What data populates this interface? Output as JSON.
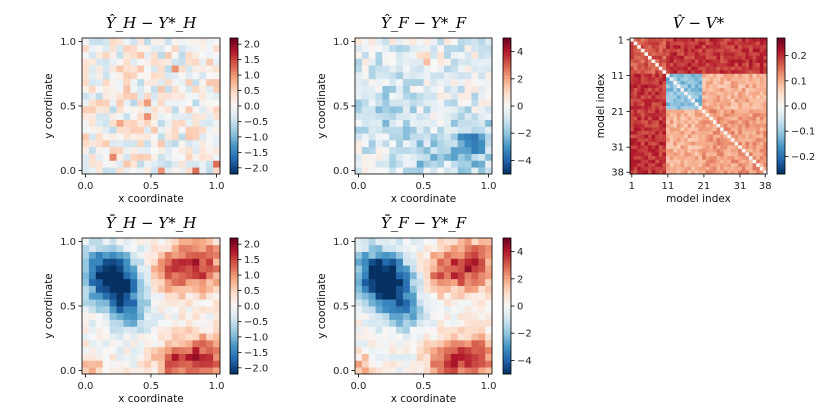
{
  "chart_data": [
    {
      "type": "heatmap",
      "title": "Ŷ_H − Y*_H",
      "xlabel": "x coordinate",
      "ylabel": "y coordinate",
      "xlim": [
        0,
        1
      ],
      "ylim": [
        0,
        1
      ],
      "x_ticks": [
        "0.0",
        "0.5",
        "1.0"
      ],
      "y_ticks": [
        "0.0",
        "0.5",
        "1.0"
      ],
      "grid_size": [
        20,
        20
      ],
      "pattern": "small-noise",
      "colormap": "RdBu_r",
      "colorbar": {
        "min": -2.2,
        "max": 2.2,
        "ticks": [
          "2.0",
          "1.5",
          "1.0",
          "0.5",
          "0.0",
          "−0.5",
          "−1.0",
          "−1.5",
          "−2.0"
        ],
        "tick_values": [
          2.0,
          1.5,
          1.0,
          0.5,
          0.0,
          -0.5,
          -1.0,
          -1.5,
          -2.0
        ]
      }
    },
    {
      "type": "heatmap",
      "title": "Ŷ_F − Y*_F",
      "xlabel": "x coordinate",
      "ylabel": "y coordinate",
      "xlim": [
        0,
        1
      ],
      "ylim": [
        0,
        1
      ],
      "x_ticks": [
        "0.0",
        "0.5",
        "1.0"
      ],
      "y_ticks": [
        "0.0",
        "0.5",
        "1.0"
      ],
      "grid_size": [
        20,
        20
      ],
      "pattern": "mostly-negative-noise",
      "colormap": "RdBu_r",
      "colorbar": {
        "min": -5,
        "max": 5,
        "ticks": [
          "4",
          "2",
          "0",
          "−2",
          "−4"
        ],
        "tick_values": [
          4,
          2,
          0,
          -2,
          -4
        ]
      }
    },
    {
      "type": "heatmap",
      "title": "V̂ − V*",
      "xlabel": "model index",
      "ylabel": "model index",
      "x_ticks": [
        "1",
        "11",
        "21",
        "31",
        "38"
      ],
      "y_ticks": [
        "1",
        "11",
        "21",
        "31",
        "38"
      ],
      "tick_values": [
        1,
        11,
        21,
        31,
        38
      ],
      "grid_size": [
        38,
        38
      ],
      "pattern": "covariance-blocks",
      "blocks": [
        [
          1,
          10
        ],
        [
          11,
          20
        ],
        [
          21,
          38
        ]
      ],
      "colormap": "RdBu_r",
      "colorbar": {
        "min": -0.27,
        "max": 0.27,
        "ticks": [
          "0.2",
          "0.1",
          "0.0",
          "−0.1",
          "−0.2"
        ],
        "tick_values": [
          0.2,
          0.1,
          0.0,
          -0.1,
          -0.2
        ]
      }
    },
    {
      "type": "heatmap",
      "title": "Ȳ_H − Y*_H",
      "xlabel": "x coordinate",
      "ylabel": "y coordinate",
      "xlim": [
        0,
        1
      ],
      "ylim": [
        0,
        1
      ],
      "x_ticks": [
        "0.0",
        "0.5",
        "1.0"
      ],
      "y_ticks": [
        "0.0",
        "0.5",
        "1.0"
      ],
      "grid_size": [
        20,
        20
      ],
      "pattern": "smooth-field",
      "colormap": "RdBu_r",
      "colorbar": {
        "min": -2.2,
        "max": 2.2,
        "ticks": [
          "2.0",
          "1.5",
          "1.0",
          "0.5",
          "0.0",
          "−0.5",
          "−1.0",
          "−1.5",
          "−2.0"
        ],
        "tick_values": [
          2.0,
          1.5,
          1.0,
          0.5,
          0.0,
          -0.5,
          -1.0,
          -1.5,
          -2.0
        ]
      }
    },
    {
      "type": "heatmap",
      "title": "Ȳ_F − Y*_F",
      "xlabel": "x coordinate",
      "ylabel": "y coordinate",
      "xlim": [
        0,
        1
      ],
      "ylim": [
        0,
        1
      ],
      "x_ticks": [
        "0.0",
        "0.5",
        "1.0"
      ],
      "y_ticks": [
        "0.0",
        "0.5",
        "1.0"
      ],
      "grid_size": [
        20,
        20
      ],
      "pattern": "smooth-field",
      "colormap": "RdBu_r",
      "colorbar": {
        "min": -5,
        "max": 5,
        "ticks": [
          "4",
          "2",
          "0",
          "−2",
          "−4"
        ],
        "tick_values": [
          4,
          2,
          0,
          -2,
          -4
        ]
      }
    }
  ]
}
